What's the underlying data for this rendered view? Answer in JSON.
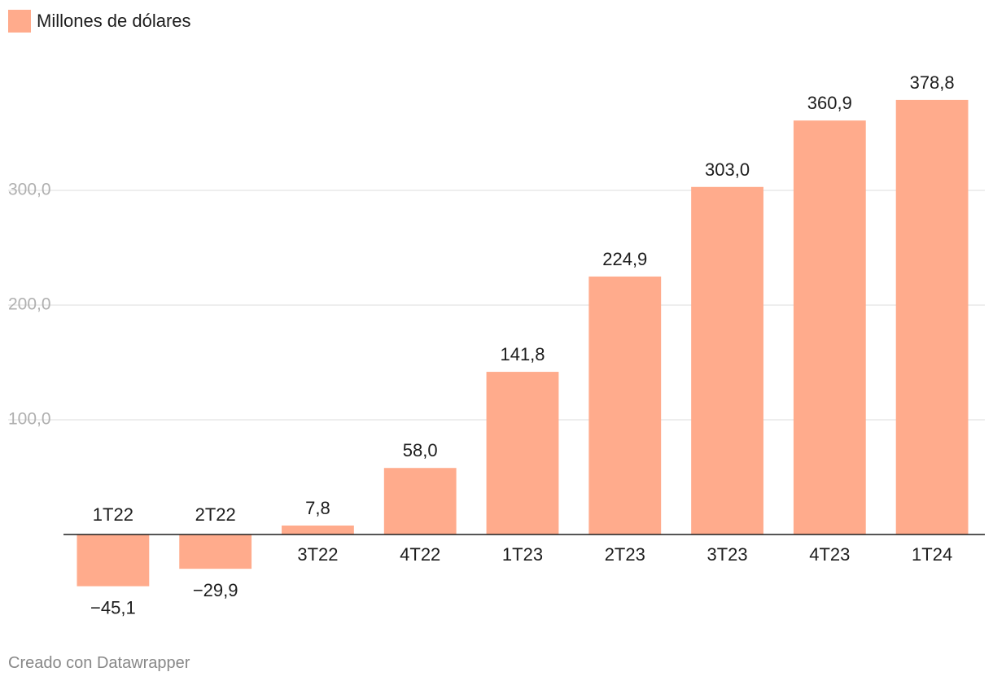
{
  "legend": {
    "label": "Millones de dólares"
  },
  "footer": {
    "credit": "Creado con Datawrapper"
  },
  "colors": {
    "bar": "#ffab8c",
    "gridline": "#dcdcdc",
    "baseline": "#1d1d1d",
    "tick_text": "#b0b0b0",
    "credit_text": "#888888"
  },
  "chart_data": {
    "type": "bar",
    "categories": [
      "1T22",
      "2T22",
      "3T22",
      "4T22",
      "1T23",
      "2T23",
      "3T23",
      "4T23",
      "1T24"
    ],
    "series": [
      {
        "name": "Millones de dólares",
        "values": [
          -45.1,
          -29.9,
          7.8,
          58.0,
          141.8,
          224.9,
          303.0,
          360.9,
          378.8
        ],
        "labels": [
          "−45,1",
          "−29,9",
          "7,8",
          "58,0",
          "141,8",
          "224,9",
          "303,0",
          "360,9",
          "378,8"
        ]
      }
    ],
    "yticks": [
      100,
      200,
      300
    ],
    "ytick_labels": [
      "100,0",
      "200,0",
      "300,0"
    ],
    "ylim": [
      -60,
      400
    ],
    "grid": true,
    "legend_position": "top-left",
    "title": "",
    "xlabel": "",
    "ylabel": ""
  }
}
